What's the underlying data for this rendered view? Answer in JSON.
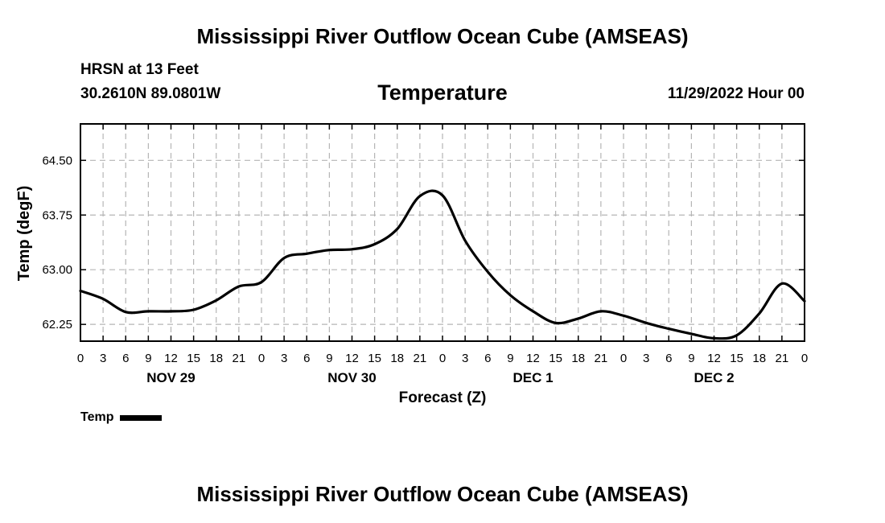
{
  "header": {
    "title": "Mississippi River Outflow Ocean Cube (AMSEAS)",
    "station": "HRSN at 13 Feet",
    "coords": "30.2610N  89.0801W",
    "subtitle": "Temperature",
    "datetime": "11/29/2022 Hour 00"
  },
  "footer": {
    "title": "Mississippi River Outflow Ocean Cube (AMSEAS)"
  },
  "legend": {
    "label": "Temp"
  },
  "chart_data": {
    "type": "line",
    "title": "Temperature",
    "xlabel": "Forecast (Z)",
    "ylabel": "Temp (degF)",
    "xlim": [
      0,
      96
    ],
    "ylim": [
      62.02,
      65.0
    ],
    "grid": true,
    "legend_position": "bottom-left",
    "x_ticks": [
      0,
      3,
      6,
      9,
      12,
      15,
      18,
      21,
      24,
      27,
      30,
      33,
      36,
      39,
      42,
      45,
      48,
      51,
      54,
      57,
      60,
      63,
      66,
      69,
      72,
      75,
      78,
      81,
      84,
      87,
      90,
      93,
      96
    ],
    "x_tick_labels": [
      "0",
      "3",
      "6",
      "9",
      "12",
      "15",
      "18",
      "21",
      "0",
      "3",
      "6",
      "9",
      "12",
      "15",
      "18",
      "21",
      "0",
      "3",
      "6",
      "9",
      "12",
      "15",
      "18",
      "21",
      "0",
      "3",
      "6",
      "9",
      "12",
      "15",
      "18",
      "21",
      "0"
    ],
    "day_labels": [
      {
        "x": 12,
        "label": "NOV 29"
      },
      {
        "x": 36,
        "label": "NOV 30"
      },
      {
        "x": 60,
        "label": "DEC 1"
      },
      {
        "x": 84,
        "label": "DEC 2"
      }
    ],
    "y_ticks": [
      62.25,
      63.0,
      63.75,
      64.5
    ],
    "y_tick_labels": [
      "62.25",
      "63.00",
      "63.75",
      "64.50"
    ],
    "series": [
      {
        "name": "Temp",
        "x": [
          0,
          3,
          6,
          9,
          12,
          15,
          18,
          21,
          24,
          27,
          30,
          33,
          36,
          39,
          42,
          45,
          48,
          51,
          54,
          57,
          60,
          63,
          66,
          69,
          72,
          75,
          78,
          81,
          84,
          87,
          90,
          93,
          96
        ],
        "y": [
          62.71,
          62.6,
          62.42,
          62.43,
          62.43,
          62.45,
          62.58,
          62.77,
          62.83,
          63.16,
          63.22,
          63.27,
          63.28,
          63.35,
          63.56,
          64.01,
          64.02,
          63.4,
          62.97,
          62.65,
          62.43,
          62.27,
          62.33,
          62.43,
          62.37,
          62.27,
          62.19,
          62.12,
          62.06,
          62.1,
          62.4,
          62.81,
          62.57
        ]
      }
    ]
  }
}
